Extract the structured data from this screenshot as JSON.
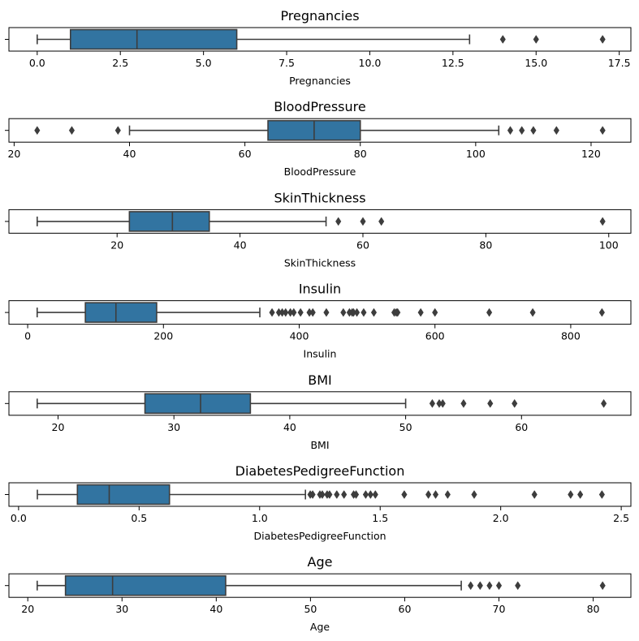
{
  "chart_data": [
    {
      "type": "box",
      "title": "Pregnancies",
      "xlabel": "Pregnancies",
      "xlim": [
        -0.85,
        17.85
      ],
      "ticks": [
        0,
        2.5,
        5,
        7.5,
        10,
        12.5,
        15,
        17.5
      ],
      "tick_labels": [
        "0.0",
        "2.5",
        "5.0",
        "7.5",
        "10.0",
        "12.5",
        "15.0",
        "17.5"
      ],
      "whisker_low": 0,
      "q1": 1,
      "median": 3,
      "q3": 6,
      "whisker_high": 13,
      "outliers": [
        14,
        15,
        17
      ]
    },
    {
      "type": "box",
      "title": "BloodPressure",
      "xlabel": "BloodPressure",
      "xlim": [
        19.1,
        126.9
      ],
      "ticks": [
        20,
        40,
        60,
        80,
        100,
        120
      ],
      "tick_labels": [
        "20",
        "40",
        "60",
        "80",
        "100",
        "120"
      ],
      "whisker_low": 40,
      "q1": 64,
      "median": 72,
      "q3": 80,
      "whisker_high": 104,
      "outliers": [
        24,
        30,
        38,
        106,
        108,
        110,
        114,
        122
      ]
    },
    {
      "type": "box",
      "title": "SkinThickness",
      "xlabel": "SkinThickness",
      "xlim": [
        2.4,
        103.6
      ],
      "ticks": [
        20,
        40,
        60,
        80,
        100
      ],
      "tick_labels": [
        "20",
        "40",
        "60",
        "80",
        "100"
      ],
      "whisker_low": 7,
      "q1": 22,
      "median": 29,
      "q3": 35,
      "whisker_high": 54,
      "outliers": [
        56,
        60,
        63,
        99
      ]
    },
    {
      "type": "box",
      "title": "Insulin",
      "xlabel": "Insulin",
      "xlim": [
        -27.6,
        888.6
      ],
      "ticks": [
        0,
        200,
        400,
        600,
        800
      ],
      "tick_labels": [
        "0",
        "200",
        "400",
        "600",
        "800"
      ],
      "whisker_low": 14,
      "q1": 85,
      "median": 130,
      "q3": 190,
      "whisker_high": 342,
      "outliers": [
        360,
        370,
        375,
        380,
        387,
        392,
        402,
        415,
        420,
        440,
        465,
        474,
        478,
        480,
        485,
        495,
        510,
        540,
        543,
        545,
        579,
        600,
        680,
        744,
        846
      ]
    },
    {
      "type": "box",
      "title": "BMI",
      "xlabel": "BMI",
      "xlim": [
        15.76,
        69.44
      ],
      "ticks": [
        20,
        30,
        40,
        50,
        60
      ],
      "tick_labels": [
        "20",
        "30",
        "40",
        "50",
        "60"
      ],
      "whisker_low": 18.2,
      "q1": 27.5,
      "median": 32.3,
      "q3": 36.6,
      "whisker_high": 50,
      "outliers": [
        52.3,
        52.9,
        53.2,
        55,
        57.3,
        59.4,
        67.1
      ]
    },
    {
      "type": "box",
      "title": "DiabetesPedigreeFunction",
      "xlabel": "DiabetesPedigreeFunction",
      "xlim": [
        -0.04,
        2.54
      ],
      "ticks": [
        0,
        0.5,
        1,
        1.5,
        2,
        2.5
      ],
      "tick_labels": [
        "0.0",
        "0.5",
        "1.0",
        "1.5",
        "2.0",
        "2.5"
      ],
      "whisker_low": 0.078,
      "q1": 0.244,
      "median": 0.376,
      "q3": 0.626,
      "whisker_high": 1.19,
      "outliers": [
        1.21,
        1.22,
        1.25,
        1.26,
        1.28,
        1.29,
        1.32,
        1.35,
        1.39,
        1.4,
        1.44,
        1.46,
        1.48,
        1.6,
        1.7,
        1.73,
        1.78,
        1.89,
        2.14,
        2.29,
        2.33,
        2.42
      ]
    },
    {
      "type": "box",
      "title": "Age",
      "xlabel": "Age",
      "xlim": [
        18,
        84
      ],
      "ticks": [
        20,
        30,
        40,
        50,
        60,
        70,
        80
      ],
      "tick_labels": [
        "20",
        "30",
        "40",
        "50",
        "60",
        "70",
        "80"
      ],
      "whisker_low": 21,
      "q1": 24,
      "median": 29,
      "q3": 41,
      "whisker_high": 66,
      "outliers": [
        67,
        68,
        69,
        70,
        72,
        81
      ]
    }
  ],
  "colors": {
    "box_fill": "#3274a1",
    "line": "#3d3d3d",
    "axis": "#000000"
  }
}
